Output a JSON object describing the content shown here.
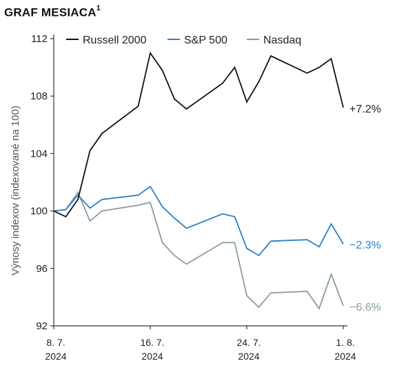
{
  "title": "GRAF MESIACA",
  "title_sup": "1",
  "chart_data": {
    "type": "line",
    "ylabel": "Výnosy indexov (indexované na 100)",
    "ylim": [
      92,
      112
    ],
    "yticks": [
      "112",
      "108",
      "104",
      "100",
      "96",
      "92"
    ],
    "xticks": [
      {
        "day": "8. 7.",
        "year": "2024"
      },
      {
        "day": "16. 7.",
        "year": "2024"
      },
      {
        "day": "24. 7.",
        "year": "2024"
      },
      {
        "day": "1. 8.",
        "year": "2024"
      }
    ],
    "legend_position": "top",
    "grid": false,
    "series": [
      {
        "name": "Russell 2000",
        "color": "#111111",
        "end_label": "+7.2%",
        "points": [
          [
            "2024-07-08",
            100.0
          ],
          [
            "2024-07-09",
            99.6
          ],
          [
            "2024-07-10",
            100.8
          ],
          [
            "2024-07-11",
            104.2
          ],
          [
            "2024-07-12",
            105.4
          ],
          [
            "2024-07-15",
            107.3
          ],
          [
            "2024-07-16",
            111.0
          ],
          [
            "2024-07-17",
            109.8
          ],
          [
            "2024-07-18",
            107.8
          ],
          [
            "2024-07-19",
            107.1
          ],
          [
            "2024-07-22",
            108.9
          ],
          [
            "2024-07-23",
            110.0
          ],
          [
            "2024-07-24",
            107.6
          ],
          [
            "2024-07-25",
            109.0
          ],
          [
            "2024-07-26",
            110.8
          ],
          [
            "2024-07-29",
            109.6
          ],
          [
            "2024-07-30",
            110.0
          ],
          [
            "2024-07-31",
            110.6
          ],
          [
            "2024-08-01",
            107.2
          ]
        ]
      },
      {
        "name": "S&P 500",
        "color": "#2f7fc1",
        "end_label": "−2.3%",
        "points": [
          [
            "2024-07-08",
            100.0
          ],
          [
            "2024-07-09",
            100.1
          ],
          [
            "2024-07-10",
            101.1
          ],
          [
            "2024-07-11",
            100.2
          ],
          [
            "2024-07-12",
            100.8
          ],
          [
            "2024-07-15",
            101.1
          ],
          [
            "2024-07-16",
            101.7
          ],
          [
            "2024-07-17",
            100.3
          ],
          [
            "2024-07-18",
            99.5
          ],
          [
            "2024-07-19",
            98.8
          ],
          [
            "2024-07-22",
            99.8
          ],
          [
            "2024-07-23",
            99.6
          ],
          [
            "2024-07-24",
            97.4
          ],
          [
            "2024-07-25",
            96.9
          ],
          [
            "2024-07-26",
            97.9
          ],
          [
            "2024-07-29",
            98.0
          ],
          [
            "2024-07-30",
            97.5
          ],
          [
            "2024-07-31",
            99.1
          ],
          [
            "2024-08-01",
            97.7
          ]
        ]
      },
      {
        "name": "Nasdaq",
        "color": "#8a9aa4",
        "end_label": "−6.6%",
        "points": [
          [
            "2024-07-08",
            100.0
          ],
          [
            "2024-07-09",
            100.1
          ],
          [
            "2024-07-10",
            101.3
          ],
          [
            "2024-07-11",
            99.3
          ],
          [
            "2024-07-12",
            100.0
          ],
          [
            "2024-07-15",
            100.4
          ],
          [
            "2024-07-16",
            100.6
          ],
          [
            "2024-07-17",
            97.8
          ],
          [
            "2024-07-18",
            96.9
          ],
          [
            "2024-07-19",
            96.3
          ],
          [
            "2024-07-22",
            97.8
          ],
          [
            "2024-07-23",
            97.8
          ],
          [
            "2024-07-24",
            94.1
          ],
          [
            "2024-07-25",
            93.3
          ],
          [
            "2024-07-26",
            94.3
          ],
          [
            "2024-07-29",
            94.4
          ],
          [
            "2024-07-30",
            93.2
          ],
          [
            "2024-07-31",
            95.6
          ],
          [
            "2024-08-01",
            93.4
          ]
        ]
      }
    ]
  }
}
